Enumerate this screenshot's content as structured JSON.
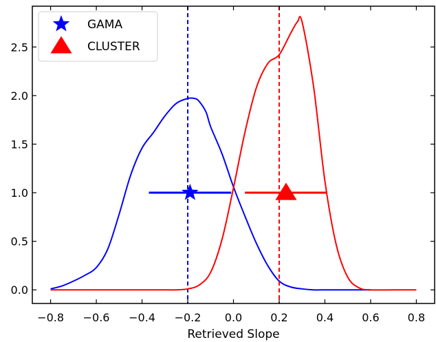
{
  "chart_data": {
    "type": "line",
    "title": "",
    "xlabel": "Retrieved Slope",
    "ylabel": "",
    "xlim": [
      -0.88,
      0.88
    ],
    "ylim": [
      -0.14,
      2.92
    ],
    "xticks": [
      -0.8,
      -0.6,
      -0.4,
      -0.2,
      0.0,
      0.2,
      0.4,
      0.6,
      0.8
    ],
    "xtick_labels": [
      "−0.8",
      "−0.6",
      "−0.4",
      "−0.2",
      "0.0",
      "0.2",
      "0.4",
      "0.6",
      "0.8"
    ],
    "yticks": [
      0.0,
      0.5,
      1.0,
      1.5,
      2.0,
      2.5
    ],
    "ytick_labels": [
      "0.0",
      "0.5",
      "1.0",
      "1.5",
      "2.0",
      "2.5"
    ],
    "grid": false,
    "legend_position": "top-left",
    "series": [
      {
        "name": "GAMA",
        "color": "#0000ff",
        "marker": "star",
        "x": [
          -0.8,
          -0.75,
          -0.7,
          -0.65,
          -0.6,
          -0.55,
          -0.5,
          -0.45,
          -0.4,
          -0.35,
          -0.3,
          -0.25,
          -0.2,
          -0.17,
          -0.15,
          -0.12,
          -0.1,
          -0.05,
          0.0,
          0.05,
          0.1,
          0.15,
          0.2,
          0.25,
          0.3,
          0.35,
          0.4,
          0.45,
          0.5,
          0.55,
          0.6
        ],
        "y": [
          0.01,
          0.04,
          0.09,
          0.15,
          0.23,
          0.42,
          0.78,
          1.18,
          1.46,
          1.62,
          1.79,
          1.92,
          1.97,
          1.97,
          1.94,
          1.83,
          1.68,
          1.4,
          1.06,
          0.76,
          0.48,
          0.25,
          0.09,
          0.03,
          0.01,
          0.0,
          0.0,
          0.0,
          0.0,
          0.0,
          0.0
        ],
        "point": {
          "x": -0.19,
          "y": 1.0,
          "xerr_low": -0.37,
          "xerr_high": -0.01
        },
        "vline": -0.2
      },
      {
        "name": "CLUSTER",
        "color": "#ff0000",
        "marker": "triangle",
        "x": [
          -0.8,
          -0.6,
          -0.4,
          -0.3,
          -0.25,
          -0.2,
          -0.15,
          -0.1,
          -0.05,
          0.0,
          0.05,
          0.1,
          0.15,
          0.2,
          0.25,
          0.28,
          0.3,
          0.35,
          0.4,
          0.45,
          0.5,
          0.55,
          0.6,
          0.7,
          0.8
        ],
        "y": [
          0.0,
          0.0,
          0.0,
          0.0,
          0.0,
          0.01,
          0.05,
          0.18,
          0.52,
          1.05,
          1.62,
          2.08,
          2.33,
          2.42,
          2.64,
          2.76,
          2.76,
          2.1,
          1.12,
          0.46,
          0.13,
          0.02,
          0.0,
          0.0,
          0.0
        ],
        "point": {
          "x": 0.23,
          "y": 1.0,
          "xerr_low": 0.05,
          "xerr_high": 0.41
        },
        "vline": 0.2
      }
    ]
  }
}
